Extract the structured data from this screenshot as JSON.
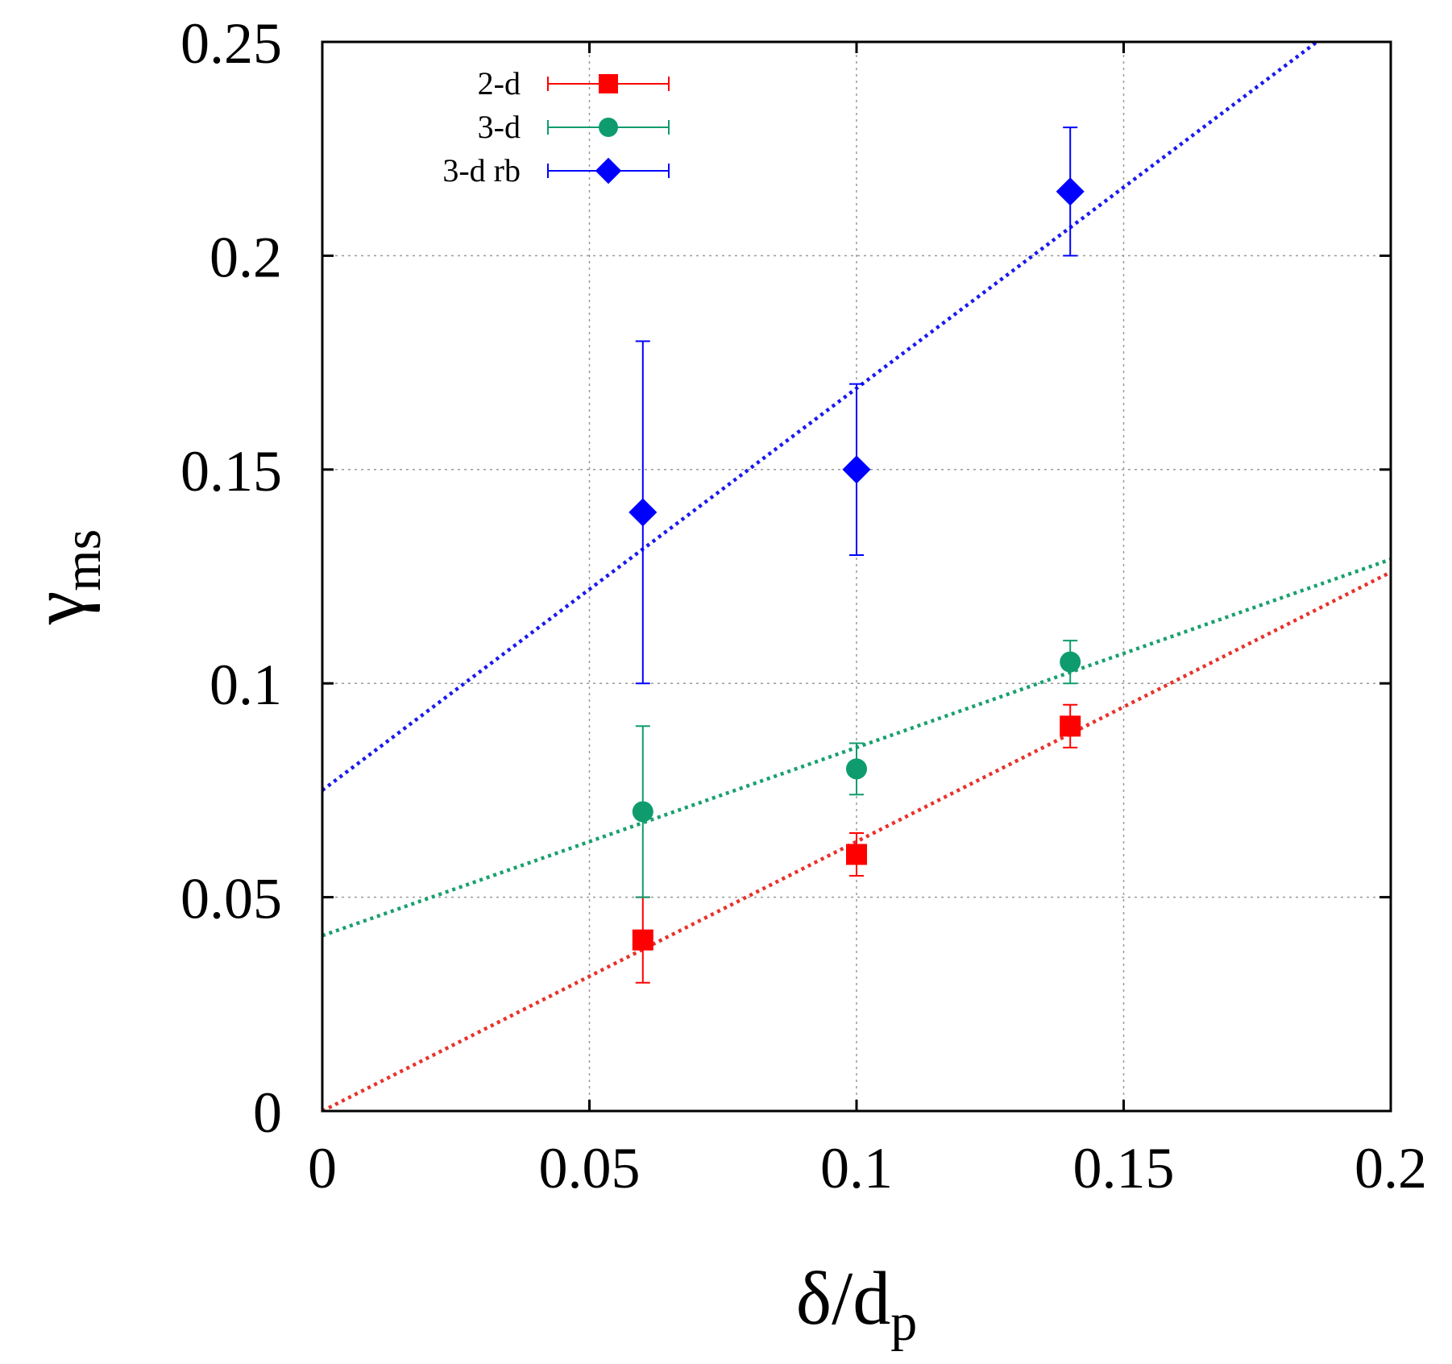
{
  "chart_data": {
    "type": "scatter",
    "title": "",
    "xlabel": {
      "main": "δ/d",
      "sub": "p"
    },
    "ylabel": {
      "main": "γ",
      "sub": "ms"
    },
    "xlim": [
      0,
      0.2
    ],
    "ylim": [
      0,
      0.25
    ],
    "xticks": [
      0,
      0.05,
      0.1,
      0.15,
      0.2
    ],
    "xtick_labels": [
      "0",
      "0.05",
      "0.1",
      "0.15",
      "0.2"
    ],
    "yticks": [
      0,
      0.05,
      0.1,
      0.15,
      0.2,
      0.25
    ],
    "ytick_labels": [
      "0",
      "0.05",
      "0.1",
      "0.15",
      "0.2",
      "0.25"
    ],
    "grid": true,
    "legend_position": "top-left",
    "series": [
      {
        "name": "2-d",
        "color": "#ff0000",
        "fit_color": "#e8322a",
        "marker": "square",
        "x": [
          0.06,
          0.1,
          0.14
        ],
        "y": [
          0.04,
          0.06,
          0.09
        ],
        "yerr": [
          0.01,
          0.005,
          0.005
        ],
        "fit": {
          "intercept": 0.0,
          "slope": 0.63
        }
      },
      {
        "name": "3-d",
        "color": "#0e9c6e",
        "fit_color": "#1aa06e",
        "marker": "circle",
        "x": [
          0.06,
          0.1,
          0.14
        ],
        "y": [
          0.07,
          0.08,
          0.105
        ],
        "yerr": [
          0.02,
          0.006,
          0.005
        ],
        "fit": {
          "intercept": 0.041,
          "slope": 0.44
        }
      },
      {
        "name": "3-d rb",
        "color": "#0000ff",
        "fit_color": "#1a1aee",
        "marker": "diamond",
        "x": [
          0.06,
          0.1,
          0.14
        ],
        "y": [
          0.14,
          0.15,
          0.215
        ],
        "yerr": [
          0.04,
          0.02,
          0.015
        ],
        "fit": {
          "intercept": 0.075,
          "slope": 0.94
        }
      }
    ]
  }
}
